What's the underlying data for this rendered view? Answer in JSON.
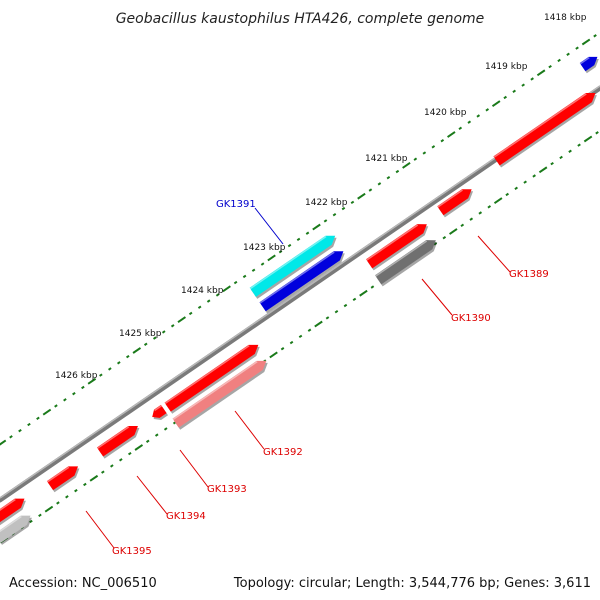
{
  "title": "Geobacillus kaustophilus HTA426, complete genome",
  "footer": {
    "accession": "Accession: NC_006510",
    "summary": "Topology: circular; Length: 3,544,776 bp; Genes: 3,611"
  },
  "ticks": [
    "1418 kbp",
    "1419 kbp",
    "1420 kbp",
    "1421 kbp",
    "1422 kbp",
    "1423 kbp",
    "1424 kbp",
    "1425 kbp",
    "1426 kbp"
  ],
  "genes": [
    {
      "label": "GK1389",
      "color": "#dd0000"
    },
    {
      "label": "GK1390",
      "color": "#dd0000"
    },
    {
      "label": "GK1391",
      "color": "#0000cc"
    },
    {
      "label": "GK1392",
      "color": "#dd0000"
    },
    {
      "label": "GK1393",
      "color": "#dd0000"
    },
    {
      "label": "GK1394",
      "color": "#dd0000"
    },
    {
      "label": "GK1395",
      "color": "#dd0000"
    }
  ],
  "colors": {
    "backbone": "#808080",
    "tick_mark": "#1a7a1a",
    "red": "#ff0000",
    "blue": "#0000dd",
    "cyan": "#00e8e8",
    "dark_gray": "#707070",
    "light_red": "#f08080",
    "light_gray": "#c0c0c0"
  }
}
